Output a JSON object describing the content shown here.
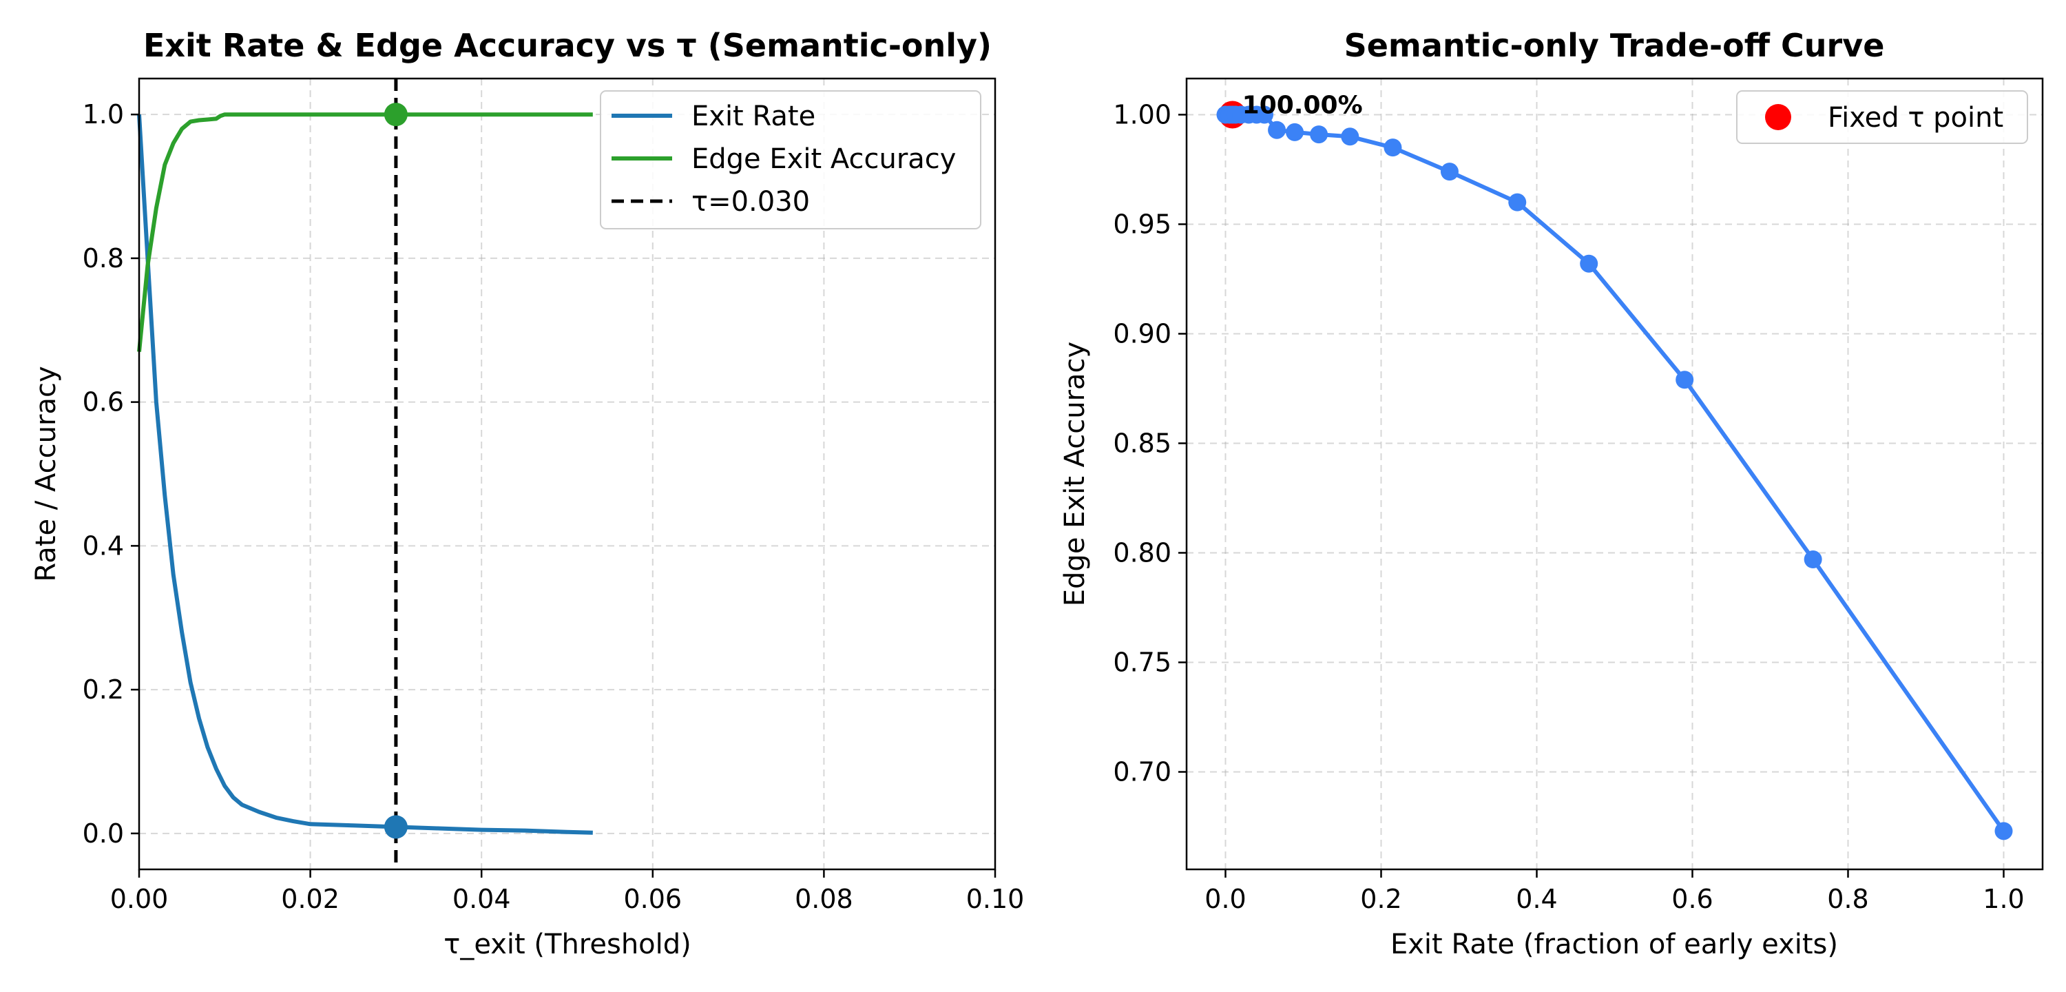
{
  "chart_data": [
    {
      "type": "line",
      "title": "Exit Rate & Edge Accuracy vs τ (Semantic-only)",
      "xlabel": "τ_exit (Threshold)",
      "ylabel": "Rate / Accuracy",
      "xlim": [
        0,
        0.1
      ],
      "ylim": [
        -0.05,
        1.05
      ],
      "xticks": [
        0,
        0.02,
        0.04,
        0.06,
        0.08,
        0.1
      ],
      "xtick_labels": [
        "0.00",
        "0.02",
        "0.04",
        "0.06",
        "0.08",
        "0.10"
      ],
      "yticks": [
        0,
        0.2,
        0.4,
        0.6,
        0.8,
        1.0
      ],
      "ytick_labels": [
        "0.0",
        "0.2",
        "0.4",
        "0.6",
        "0.8",
        "1.0"
      ],
      "grid": true,
      "legend_position": "top-right",
      "series": [
        {
          "name": "Exit Rate",
          "color": "#1f77b4",
          "x": [
            0,
            0.001,
            0.002,
            0.003,
            0.004,
            0.005,
            0.006,
            0.007,
            0.008,
            0.009,
            0.01,
            0.011,
            0.012,
            0.014,
            0.016,
            0.018,
            0.02,
            0.025,
            0.03,
            0.035,
            0.04,
            0.045,
            0.05,
            0.053
          ],
          "y": [
            1.0,
            0.8,
            0.6,
            0.47,
            0.36,
            0.28,
            0.21,
            0.16,
            0.12,
            0.09,
            0.066,
            0.05,
            0.04,
            0.03,
            0.022,
            0.017,
            0.013,
            0.011,
            0.009,
            0.007,
            0.005,
            0.004,
            0.002,
            0.001
          ]
        },
        {
          "name": "Edge Exit Accuracy",
          "color": "#2ca02c",
          "x": [
            0,
            0.001,
            0.002,
            0.003,
            0.004,
            0.005,
            0.006,
            0.007,
            0.008,
            0.009,
            0.0095,
            0.01,
            0.02,
            0.03,
            0.04,
            0.05,
            0.053
          ],
          "y": [
            0.67,
            0.79,
            0.87,
            0.93,
            0.96,
            0.98,
            0.99,
            0.992,
            0.993,
            0.994,
            0.998,
            1.0,
            1.0,
            1.0,
            1.0,
            1.0,
            1.0
          ]
        }
      ],
      "threshold": {
        "name": "τ=0.030",
        "x": 0.03,
        "color": "#000000"
      },
      "markers": [
        {
          "x": 0.03,
          "y": 1.0,
          "color": "#2ca02c"
        },
        {
          "x": 0.03,
          "y": 0.009,
          "color": "#1f77b4"
        }
      ]
    },
    {
      "type": "line",
      "title": "Semantic-only Trade-off Curve",
      "xlabel": "Exit Rate (fraction of early exits)",
      "ylabel": "Edge Exit Accuracy",
      "xlim": [
        -0.05,
        1.05
      ],
      "ylim": [
        0.6555,
        1.0165
      ],
      "xticks": [
        0,
        0.2,
        0.4,
        0.6,
        0.8,
        1.0
      ],
      "xtick_labels": [
        "0.0",
        "0.2",
        "0.4",
        "0.6",
        "0.8",
        "1.0"
      ],
      "yticks": [
        0.7,
        0.75,
        0.8,
        0.85,
        0.9,
        0.95,
        1.0
      ],
      "ytick_labels": [
        "0.70",
        "0.75",
        "0.80",
        "0.85",
        "0.90",
        "0.95",
        "1.00"
      ],
      "grid": true,
      "legend_position": "top-right",
      "series": [
        {
          "color": "#3b82f6",
          "x": [
            0.0,
            0.005,
            0.009,
            0.013,
            0.02,
            0.03,
            0.04,
            0.05,
            0.066,
            0.089,
            0.12,
            0.16,
            0.215,
            0.288,
            0.375,
            0.467,
            0.59,
            0.755,
            1.0
          ],
          "y": [
            1.0,
            1.0,
            1.0,
            1.0,
            1.0,
            1.0,
            1.0,
            1.0,
            0.993,
            0.992,
            0.991,
            0.99,
            0.985,
            0.974,
            0.96,
            0.932,
            0.879,
            0.797,
            0.673
          ]
        }
      ],
      "fixed_point": {
        "name": "Fixed τ point",
        "x": 0.009,
        "y": 1.0,
        "color": "#ff0000",
        "label": "100.00%"
      }
    }
  ]
}
